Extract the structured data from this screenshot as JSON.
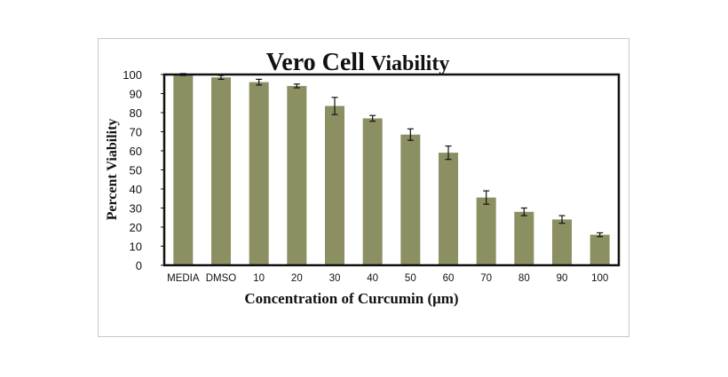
{
  "chart_data": {
    "type": "bar",
    "title_parts": [
      "Vero Cell",
      "Viability"
    ],
    "xlabel": "Concentration of Curcumin (μm)",
    "ylabel": "Percent Viability",
    "ylim": [
      0,
      100
    ],
    "yticks": [
      0,
      10,
      20,
      30,
      40,
      50,
      60,
      70,
      80,
      90,
      100
    ],
    "grid": false,
    "categories": [
      "MEDIA",
      "DMSO",
      "10",
      "20",
      "30",
      "40",
      "50",
      "60",
      "70",
      "80",
      "90",
      "100"
    ],
    "values": [
      100,
      98.5,
      96,
      94,
      83.5,
      77,
      68.5,
      59,
      35.5,
      28,
      24,
      16
    ],
    "errors": [
      0.5,
      1,
      1.5,
      1,
      4.5,
      1.5,
      3,
      3.5,
      3.5,
      2,
      2,
      1
    ],
    "bar_color": "#8b8f62"
  }
}
